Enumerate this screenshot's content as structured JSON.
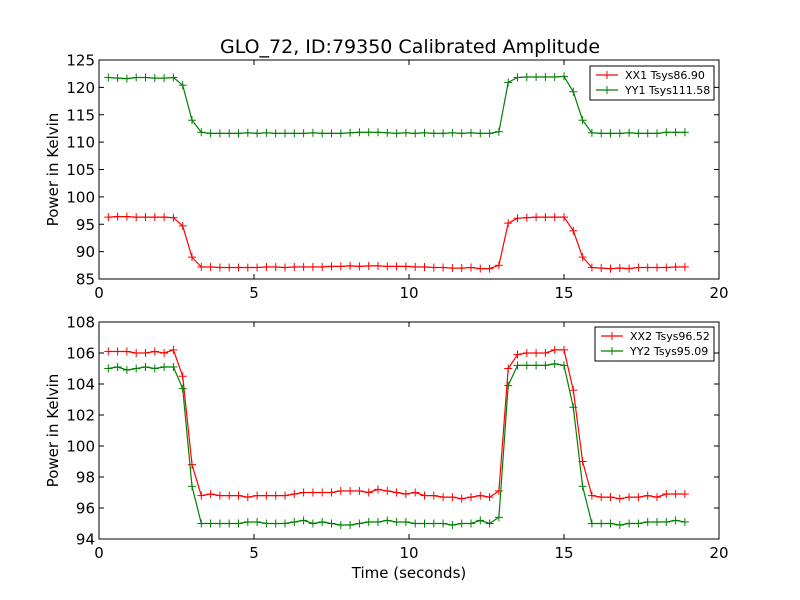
{
  "title": "GLO_72, ID:79350 Calibrated Amplitude",
  "chart_data": [
    {
      "type": "line",
      "title": "GLO_72, ID:79350 Calibrated Amplitude",
      "xlabel": "",
      "ylabel": "Power in Kelvin",
      "xlim": [
        0,
        20
      ],
      "ylim": [
        85,
        125
      ],
      "xticks": [
        "0",
        "5",
        "10",
        "15",
        "20"
      ],
      "yticks": [
        "85",
        "90",
        "95",
        "100",
        "105",
        "110",
        "115",
        "120",
        "125"
      ],
      "grid": false,
      "legend_position": "top-right",
      "x": [
        0.3,
        0.6,
        0.9,
        1.2,
        1.5,
        1.8,
        2.1,
        2.4,
        2.7,
        3.0,
        3.3,
        3.6,
        3.9,
        4.2,
        4.5,
        4.8,
        5.1,
        5.4,
        5.7,
        6.0,
        6.3,
        6.6,
        6.9,
        7.2,
        7.5,
        7.8,
        8.1,
        8.4,
        8.7,
        9.0,
        9.3,
        9.6,
        9.9,
        10.2,
        10.5,
        10.8,
        11.1,
        11.4,
        11.7,
        12.0,
        12.3,
        12.6,
        12.9,
        13.2,
        13.5,
        13.8,
        14.1,
        14.4,
        14.7,
        15.0,
        15.3,
        15.6,
        15.9,
        16.2,
        16.5,
        16.8,
        17.1,
        17.4,
        17.7,
        18.0,
        18.3,
        18.6,
        18.9
      ],
      "series": [
        {
          "name": "XX1 Tsys86.90",
          "color": "#ff0000",
          "values": [
            96.3,
            96.4,
            96.4,
            96.3,
            96.3,
            96.3,
            96.3,
            96.2,
            94.7,
            89.0,
            87.2,
            87.2,
            87.1,
            87.1,
            87.1,
            87.1,
            87.1,
            87.2,
            87.2,
            87.1,
            87.2,
            87.2,
            87.2,
            87.2,
            87.3,
            87.3,
            87.4,
            87.3,
            87.4,
            87.4,
            87.3,
            87.3,
            87.3,
            87.2,
            87.2,
            87.1,
            87.1,
            87.0,
            87.0,
            87.1,
            86.9,
            86.9,
            87.5,
            95.2,
            96.1,
            96.2,
            96.3,
            96.3,
            96.3,
            96.3,
            93.8,
            89.0,
            87.1,
            87.0,
            86.9,
            87.0,
            86.9,
            87.1,
            87.1,
            87.1,
            87.1,
            87.2,
            87.2
          ]
        },
        {
          "name": "YY1 Tsys111.58",
          "color": "#008000",
          "values": [
            121.8,
            121.7,
            121.6,
            121.8,
            121.8,
            121.7,
            121.7,
            121.8,
            120.4,
            114.0,
            111.8,
            111.6,
            111.6,
            111.6,
            111.6,
            111.7,
            111.6,
            111.7,
            111.6,
            111.6,
            111.6,
            111.6,
            111.7,
            111.6,
            111.6,
            111.6,
            111.7,
            111.8,
            111.8,
            111.8,
            111.7,
            111.6,
            111.7,
            111.6,
            111.7,
            111.6,
            111.6,
            111.7,
            111.6,
            111.7,
            111.6,
            111.6,
            111.9,
            120.9,
            121.8,
            121.9,
            121.9,
            121.9,
            121.9,
            122.0,
            119.2,
            114.0,
            111.7,
            111.6,
            111.6,
            111.6,
            111.7,
            111.6,
            111.6,
            111.6,
            111.8,
            111.8,
            111.8
          ]
        }
      ]
    },
    {
      "type": "line",
      "title": "",
      "xlabel": "Time (seconds)",
      "ylabel": "Power in Kelvin",
      "xlim": [
        0,
        20
      ],
      "ylim": [
        94,
        108
      ],
      "xticks": [
        "0",
        "5",
        "10",
        "15",
        "20"
      ],
      "yticks": [
        "94",
        "96",
        "98",
        "100",
        "102",
        "104",
        "106",
        "108"
      ],
      "grid": false,
      "legend_position": "top-right",
      "x": [
        0.3,
        0.6,
        0.9,
        1.2,
        1.5,
        1.8,
        2.1,
        2.4,
        2.7,
        3.0,
        3.3,
        3.6,
        3.9,
        4.2,
        4.5,
        4.8,
        5.1,
        5.4,
        5.7,
        6.0,
        6.3,
        6.6,
        6.9,
        7.2,
        7.5,
        7.8,
        8.1,
        8.4,
        8.7,
        9.0,
        9.3,
        9.6,
        9.9,
        10.2,
        10.5,
        10.8,
        11.1,
        11.4,
        11.7,
        12.0,
        12.3,
        12.6,
        12.9,
        13.2,
        13.5,
        13.8,
        14.1,
        14.4,
        14.7,
        15.0,
        15.3,
        15.6,
        15.9,
        16.2,
        16.5,
        16.8,
        17.1,
        17.4,
        17.7,
        18.0,
        18.3,
        18.6,
        18.9
      ],
      "series": [
        {
          "name": "XX2 Tsys96.52",
          "color": "#ff0000",
          "values": [
            106.1,
            106.1,
            106.1,
            106.0,
            106.0,
            106.1,
            106.0,
            106.2,
            104.5,
            98.8,
            96.8,
            96.9,
            96.8,
            96.8,
            96.8,
            96.7,
            96.8,
            96.8,
            96.8,
            96.8,
            96.9,
            97.0,
            97.0,
            97.0,
            97.0,
            97.1,
            97.1,
            97.1,
            97.0,
            97.2,
            97.1,
            97.0,
            96.9,
            97.0,
            96.8,
            96.8,
            96.7,
            96.7,
            96.6,
            96.7,
            96.8,
            96.7,
            97.1,
            105.0,
            105.9,
            106.0,
            106.0,
            106.0,
            106.2,
            106.2,
            103.6,
            99.0,
            96.8,
            96.7,
            96.7,
            96.6,
            96.7,
            96.7,
            96.8,
            96.7,
            96.9,
            96.9,
            96.9
          ]
        },
        {
          "name": "YY2 Tsys95.09",
          "color": "#008000",
          "values": [
            105.0,
            105.1,
            104.9,
            105.0,
            105.1,
            105.0,
            105.1,
            105.1,
            103.7,
            97.4,
            95.0,
            95.0,
            95.0,
            95.0,
            95.0,
            95.1,
            95.1,
            95.0,
            95.0,
            95.0,
            95.1,
            95.2,
            95.0,
            95.1,
            95.0,
            94.9,
            94.9,
            95.0,
            95.1,
            95.1,
            95.2,
            95.1,
            95.1,
            95.0,
            95.0,
            95.0,
            95.0,
            94.9,
            95.0,
            95.0,
            95.2,
            95.0,
            95.4,
            103.9,
            105.2,
            105.2,
            105.2,
            105.2,
            105.3,
            105.2,
            102.5,
            97.4,
            95.0,
            95.0,
            95.0,
            94.9,
            95.0,
            95.0,
            95.1,
            95.1,
            95.1,
            95.2,
            95.1
          ]
        }
      ]
    }
  ]
}
